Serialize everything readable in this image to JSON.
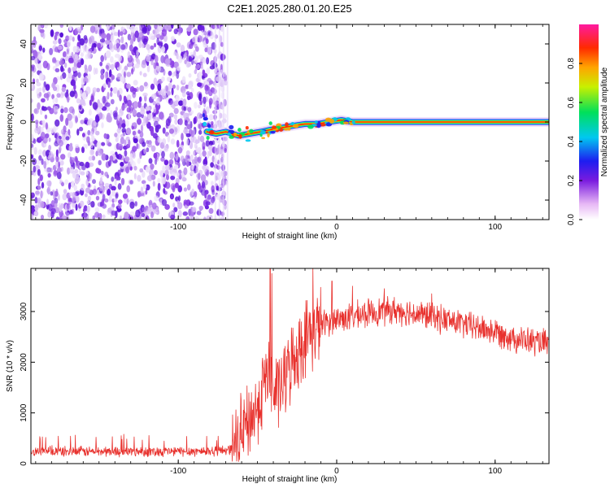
{
  "title": "C2E1.2025.280.01.20.E25",
  "chart_data": [
    {
      "type": "heatmap",
      "name": "spectrogram",
      "xlabel": "Height of straight line (km)",
      "ylabel": "Frequency (Hz)",
      "xlim": [
        -193,
        134
      ],
      "ylim": [
        -50,
        50
      ],
      "xticks": [
        -100,
        0,
        100
      ],
      "yticks": [
        -40,
        -20,
        0,
        20,
        40
      ],
      "noise_region_x": [
        -193,
        -73
      ],
      "signal_trace": [
        {
          "x": -82,
          "y": -5
        },
        {
          "x": -76,
          "y": -6
        },
        {
          "x": -70,
          "y": -5
        },
        {
          "x": -62,
          "y": -7
        },
        {
          "x": -55,
          "y": -6
        },
        {
          "x": -48,
          "y": -5
        },
        {
          "x": -42,
          "y": -4
        },
        {
          "x": -35,
          "y": -3
        },
        {
          "x": -28,
          "y": -2
        },
        {
          "x": -20,
          "y": -1
        },
        {
          "x": -12,
          "y": -1
        },
        {
          "x": -5,
          "y": 0
        },
        {
          "x": 3,
          "y": 1
        },
        {
          "x": 10,
          "y": 0
        },
        {
          "x": 20,
          "y": 0
        },
        {
          "x": 60,
          "y": 0
        },
        {
          "x": 100,
          "y": 0
        },
        {
          "x": 134,
          "y": 0
        }
      ],
      "colorbar": {
        "label": "Normalized spectral amplitude",
        "range": [
          0,
          1
        ],
        "ticks": [
          "0.0",
          "0.2",
          "0.4",
          "0.6",
          "0.8"
        ]
      }
    },
    {
      "type": "line",
      "name": "snr",
      "xlabel": "Height of straight line (km)",
      "ylabel": "SNR (10 * v/v)",
      "xlim": [
        -193,
        134
      ],
      "ylim": [
        0,
        3850
      ],
      "xticks": [
        -100,
        0,
        100
      ],
      "yticks": [
        0,
        1000,
        2000,
        3000
      ],
      "color": "#e8312d",
      "envelope": [
        {
          "x": -193,
          "y": 240
        },
        {
          "x": -150,
          "y": 240
        },
        {
          "x": -100,
          "y": 240
        },
        {
          "x": -75,
          "y": 250
        },
        {
          "x": -65,
          "y": 300
        },
        {
          "x": -58,
          "y": 700
        },
        {
          "x": -50,
          "y": 1100
        },
        {
          "x": -44,
          "y": 1800
        },
        {
          "x": -40,
          "y": 1400
        },
        {
          "x": -35,
          "y": 1500
        },
        {
          "x": -30,
          "y": 1900
        },
        {
          "x": -25,
          "y": 2200
        },
        {
          "x": -18,
          "y": 2550
        },
        {
          "x": -10,
          "y": 2750
        },
        {
          "x": 0,
          "y": 2850
        },
        {
          "x": 10,
          "y": 2900
        },
        {
          "x": 25,
          "y": 3000
        },
        {
          "x": 40,
          "y": 3020
        },
        {
          "x": 60,
          "y": 2900
        },
        {
          "x": 80,
          "y": 2750
        },
        {
          "x": 100,
          "y": 2600
        },
        {
          "x": 115,
          "y": 2450
        },
        {
          "x": 134,
          "y": 2350
        }
      ],
      "spikes": [
        {
          "x": -42,
          "y": 3850
        },
        {
          "x": -41,
          "y": 3750
        },
        {
          "x": -15,
          "y": 3850
        },
        {
          "x": -3,
          "y": 3600
        },
        {
          "x": 10,
          "y": 3500
        },
        {
          "x": 30,
          "y": 3450
        },
        {
          "x": 60,
          "y": 3350
        }
      ]
    }
  ]
}
